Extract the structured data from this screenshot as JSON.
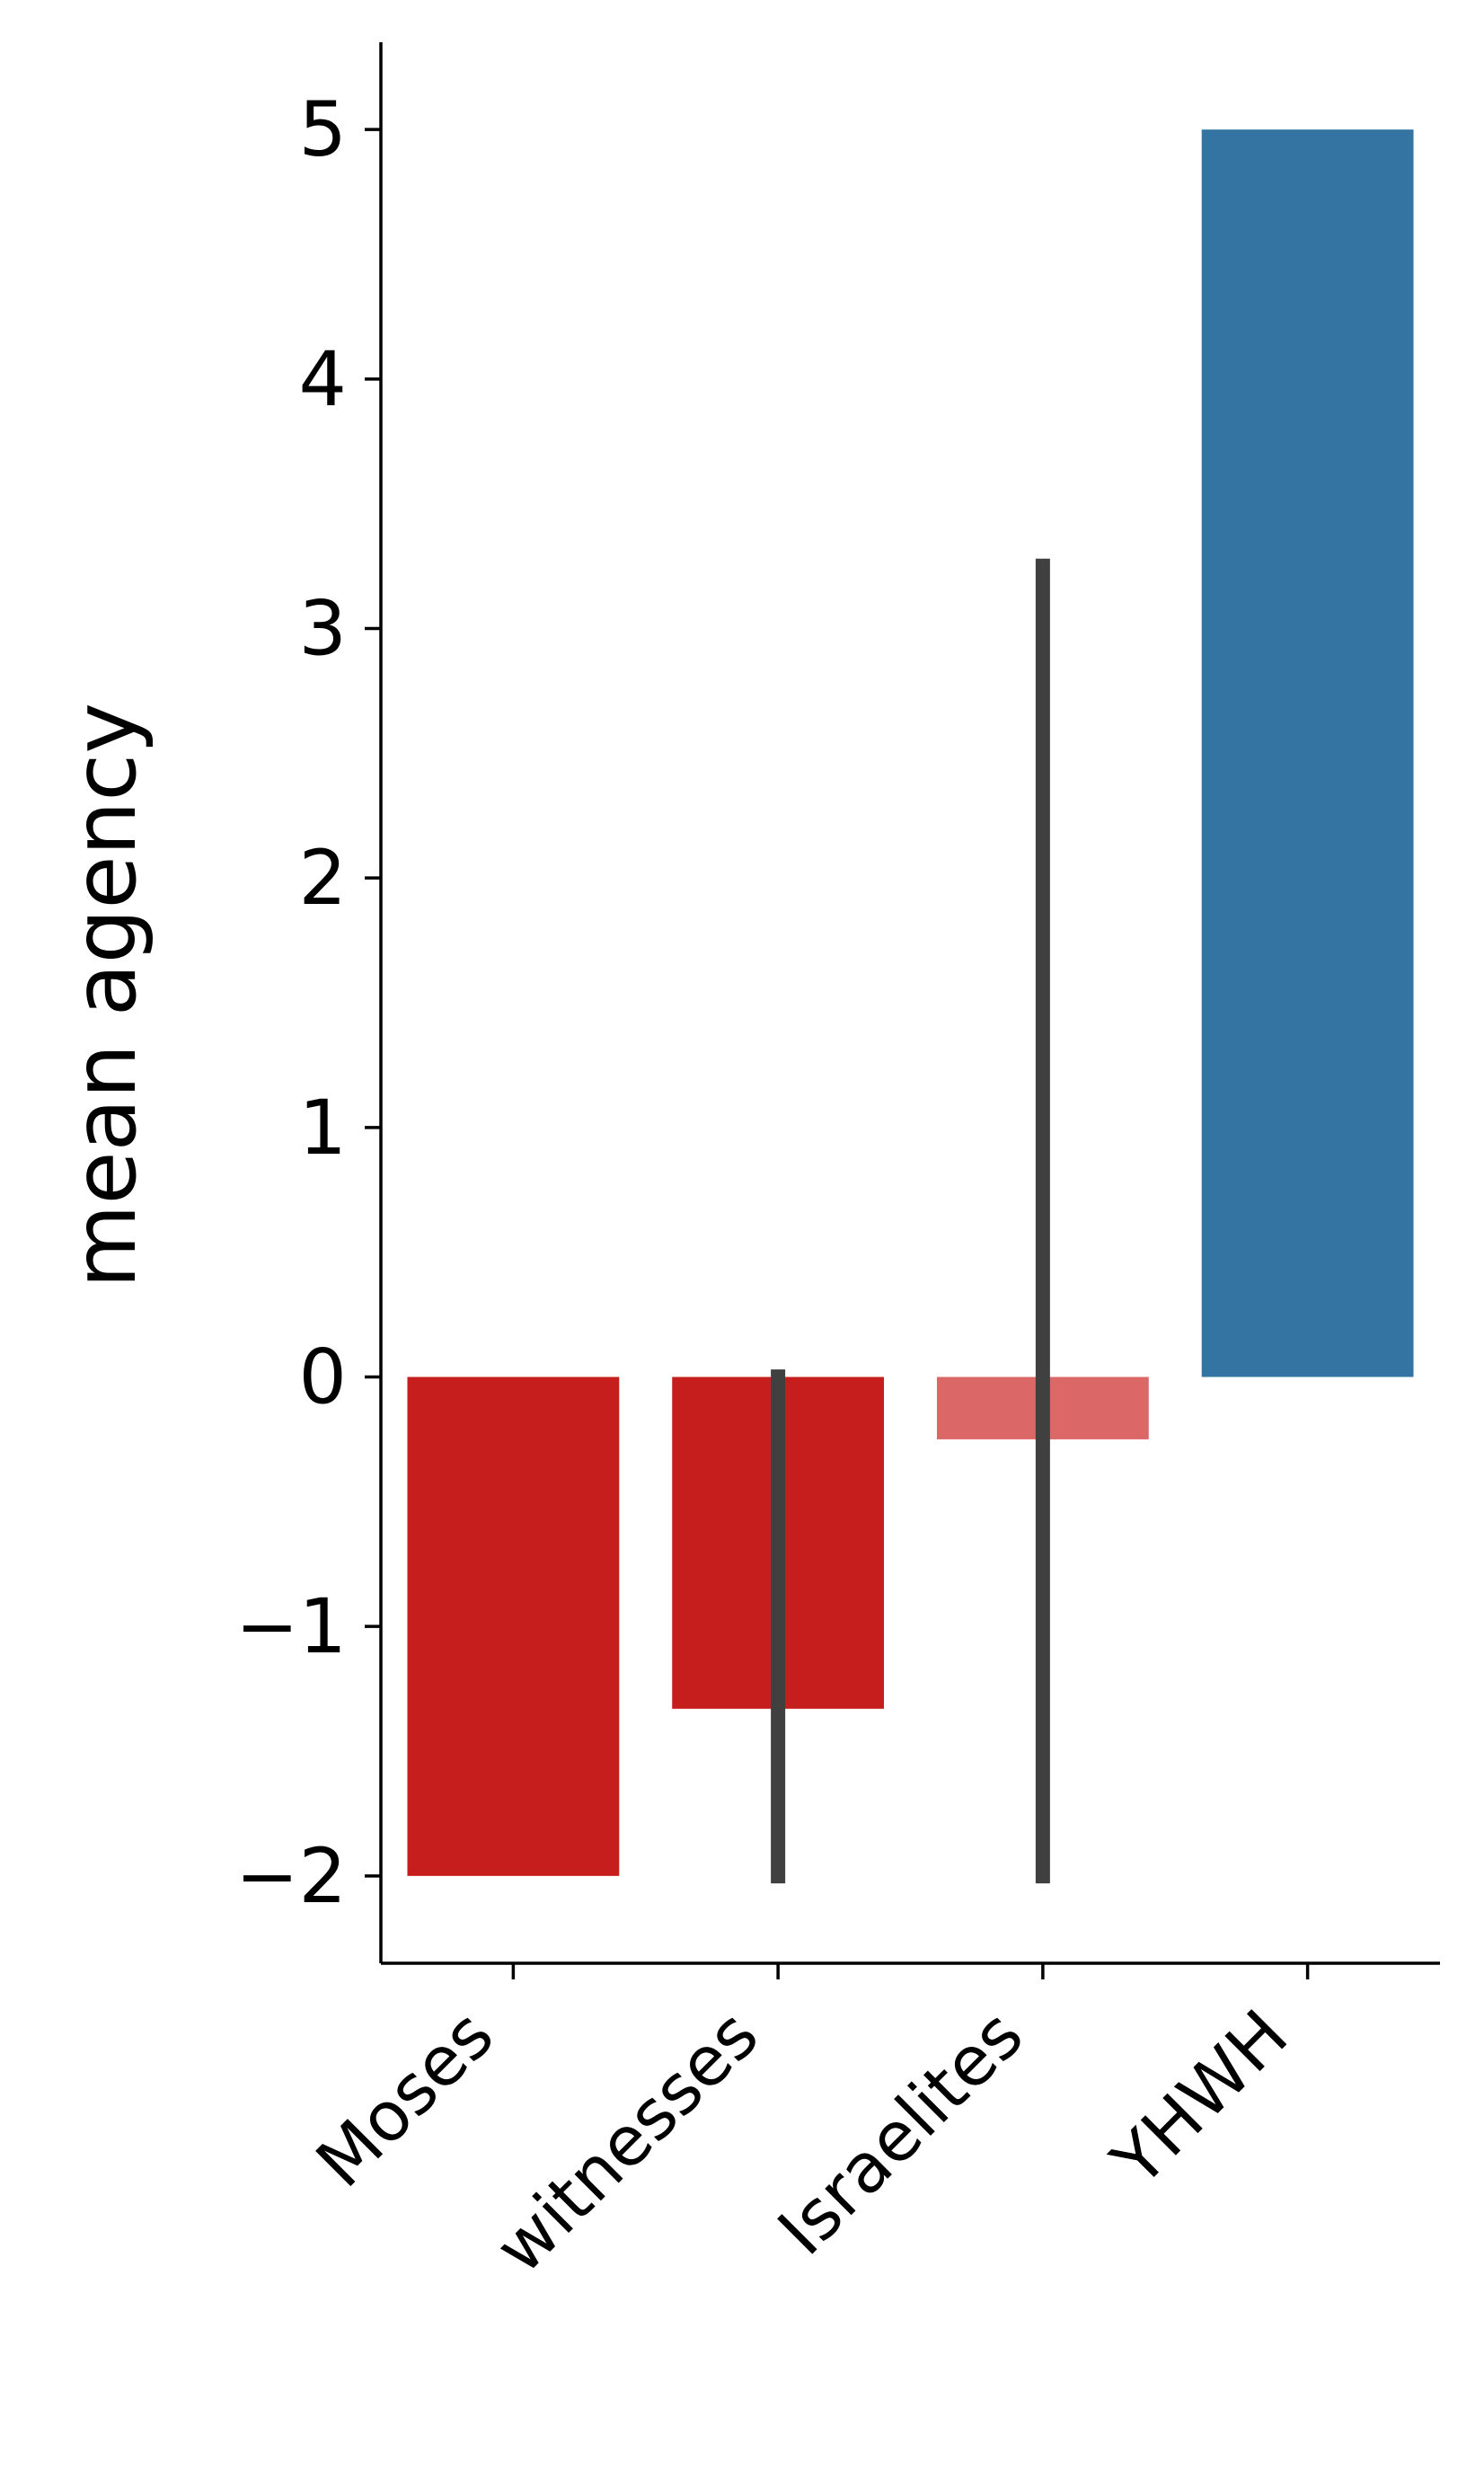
{
  "chart_data": {
    "type": "bar",
    "categories": [
      "Moses",
      "witnesses",
      "Israelites",
      "YHWH"
    ],
    "values": [
      -2.0,
      -1.33,
      -0.25,
      5.0
    ],
    "error_bars": [
      null,
      [
        -2.03,
        0.03
      ],
      [
        -2.03,
        3.28
      ],
      null
    ],
    "colors": [
      "#c61e1d",
      "#c61e1d",
      "#dc6767",
      "#3374a2"
    ],
    "error_color": "#404040",
    "ylabel": "mean agency",
    "xlabel": "",
    "ylim": [
      -2.35,
      5.35
    ],
    "yticks": [
      5,
      4,
      3,
      2,
      1,
      0,
      -1,
      -2
    ],
    "ytick_labels": [
      "5",
      "4",
      "3",
      "2",
      "1",
      "0",
      "−1",
      "−2"
    ],
    "grid": false,
    "legend": "none"
  }
}
